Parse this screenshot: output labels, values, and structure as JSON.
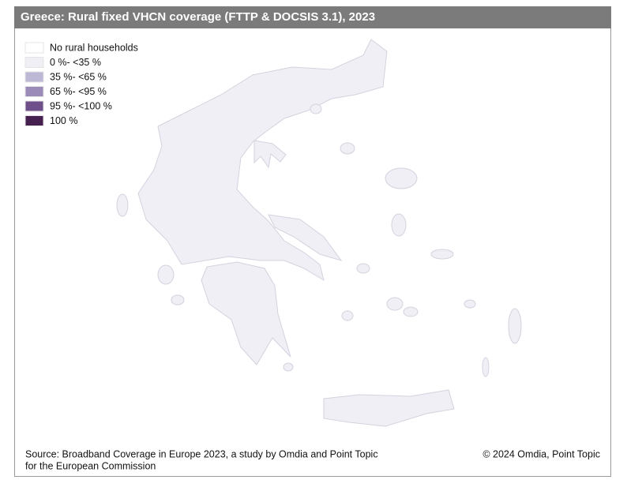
{
  "title": "Greece: Rural fixed VHCN coverage (FTTP & DOCSIS 3.1), 2023",
  "legend": [
    {
      "label": "No rural households",
      "color": "#ffffff"
    },
    {
      "label": "0 %- <35 %",
      "color": "#efeff5"
    },
    {
      "label": "35 %- <65 %",
      "color": "#bcb8d6"
    },
    {
      "label": "65 %- <95 %",
      "color": "#9b8bb8"
    },
    {
      "label": "95 %- <100 %",
      "color": "#6e4f8a"
    },
    {
      "label": "100 %",
      "color": "#46204f"
    }
  ],
  "footer": {
    "source": [
      "Source: Broadband Coverage in Europe 2023, a study by Omdia and Point Topic",
      "for the European Commission"
    ],
    "copyright": "© 2024 Omdia, Point Topic"
  }
}
